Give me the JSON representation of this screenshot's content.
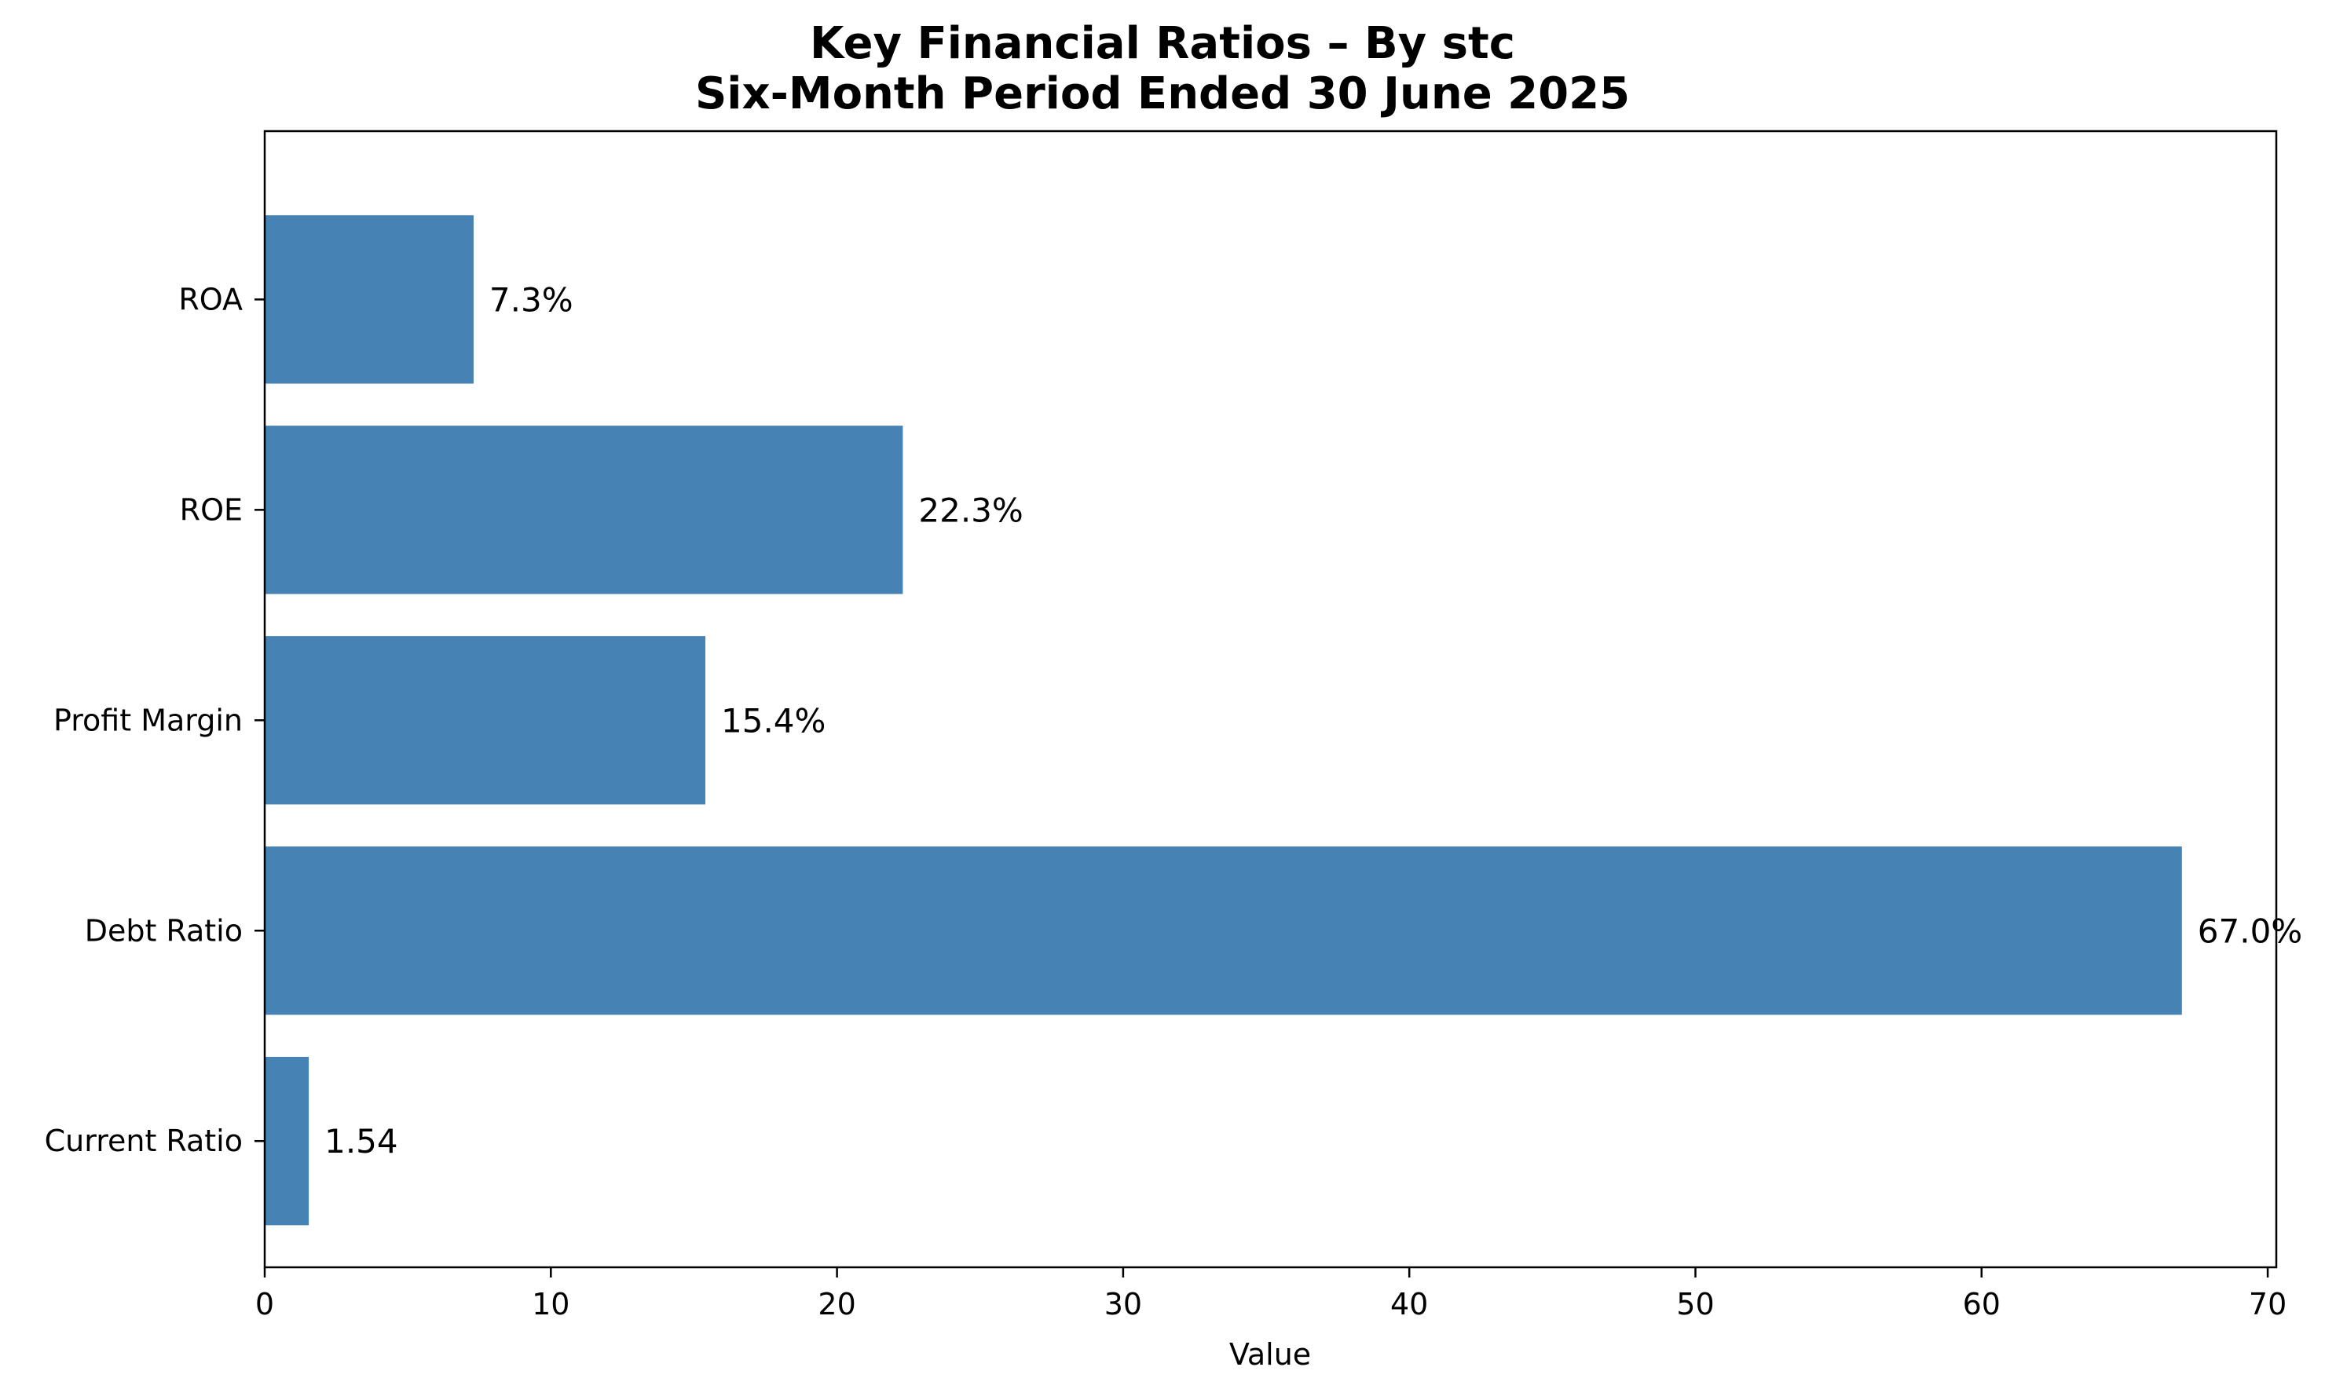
{
  "chart_data": {
    "type": "bar",
    "orientation": "horizontal",
    "title": "Key Financial Ratios – By stc",
    "subtitle": "Six-Month Period Ended 30 June 2025",
    "xlabel": "Value",
    "ylabel": "",
    "categories": [
      "Current Ratio",
      "Debt Ratio",
      "Profit Margin",
      "ROE",
      "ROA"
    ],
    "values": [
      1.54,
      67.0,
      15.4,
      22.3,
      7.3
    ],
    "data_labels": [
      "1.54",
      "67.0%",
      "15.4%",
      "22.3%",
      "7.3%"
    ],
    "xlim": [
      0,
      70.3
    ],
    "x_ticks": [
      0,
      10,
      20,
      30,
      40,
      50,
      60,
      70
    ],
    "grid": false,
    "legend": "none",
    "bar_color": "#4682b4"
  }
}
